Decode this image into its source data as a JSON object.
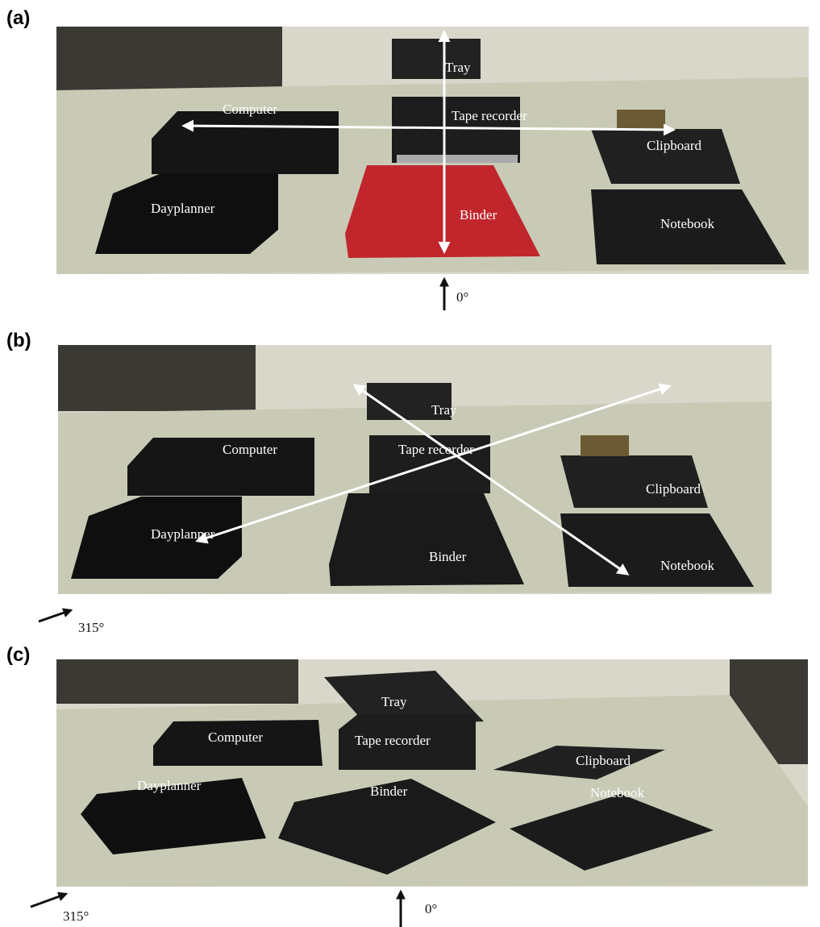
{
  "panels": [
    {
      "label": "(a)",
      "objects": [
        "Tray",
        "Computer",
        "Tape recorder",
        "Clipboard",
        "Dayplanner",
        "Binder",
        "Notebook"
      ],
      "angles": [
        "0°"
      ]
    },
    {
      "label": "(b)",
      "objects": [
        "Tray",
        "Computer",
        "Tape recorder",
        "Clipboard",
        "Dayplanner",
        "Binder",
        "Notebook"
      ],
      "angles": [
        "315°"
      ]
    },
    {
      "label": "(c)",
      "objects": [
        "Tray",
        "Computer",
        "Tape recorder",
        "Clipboard",
        "Dayplanner",
        "Binder",
        "Notebook"
      ],
      "angles": [
        "315°",
        "0°"
      ]
    }
  ]
}
